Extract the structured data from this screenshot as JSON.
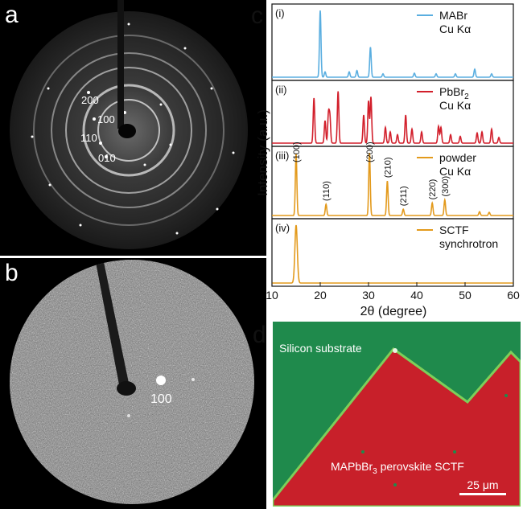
{
  "panels": {
    "a": {
      "letter": "a",
      "spot_labels": [
        "200",
        "100",
        "110",
        "010"
      ]
    },
    "b": {
      "letter": "b",
      "spot_label": "100"
    },
    "c": {
      "letter": "c",
      "ylabel": "Intensity (a.u.)",
      "xlabel": "2θ (degree)",
      "x_ticks": [
        "10",
        "20",
        "30",
        "40",
        "50",
        "60"
      ]
    },
    "d": {
      "letter": "d",
      "substrate_label": "Silicon substrate",
      "film_label_main": "MAPbBr",
      "film_label_sub": "3",
      "film_label_rest": " perovskite SCTF",
      "scale_bar_label": "25 μm"
    }
  },
  "colors": {
    "mabr": "#5aaee0",
    "pbbr2": "#d21f2b",
    "powder": "#e39a1c",
    "sctf": "#e39a1c",
    "substrate": "#1f8a4c",
    "film": "#c8202a"
  },
  "chart_data": [
    {
      "type": "line",
      "panel": "(i)",
      "legend": [
        "MABr",
        "Cu Kα"
      ],
      "xlim": [
        10,
        60
      ],
      "peaks_x": [
        20.0,
        21.0,
        26.0,
        27.6,
        30.4,
        33.0,
        39.5,
        44.0,
        48.0,
        52.0,
        55.5
      ],
      "peaks_rel": [
        1.0,
        0.08,
        0.08,
        0.1,
        0.45,
        0.05,
        0.06,
        0.05,
        0.05,
        0.12,
        0.05
      ]
    },
    {
      "type": "line",
      "panel": "(ii)",
      "legend_main": "PbBr",
      "legend_sub": "2",
      "legend_line2": "Cu Kα",
      "xlim": [
        10,
        60
      ],
      "peaks_x": [
        18.7,
        21.0,
        21.7,
        22.0,
        23.7,
        29.0,
        30.0,
        30.5,
        33.5,
        34.5,
        36.0,
        37.7,
        39.0,
        41.0,
        44.5,
        45.0,
        47.0,
        49.0,
        52.5,
        53.5,
        55.5,
        57.0
      ],
      "peaks_rel": [
        0.8,
        0.4,
        0.5,
        0.45,
        0.92,
        0.5,
        0.75,
        0.82,
        0.28,
        0.2,
        0.15,
        0.5,
        0.25,
        0.2,
        0.3,
        0.28,
        0.15,
        0.12,
        0.18,
        0.2,
        0.25,
        0.1
      ]
    },
    {
      "type": "line",
      "panel": "(iii)",
      "legend": [
        "powder",
        "Cu Kα"
      ],
      "xlim": [
        10,
        60
      ],
      "peaks_x": [
        15.0,
        21.2,
        30.2,
        33.9,
        37.2,
        43.2,
        45.8,
        53.0,
        55.0
      ],
      "peaks_rel": [
        0.98,
        0.18,
        1.0,
        0.55,
        0.1,
        0.2,
        0.25,
        0.06,
        0.05
      ],
      "labels": [
        "(100)",
        "(110)",
        "(200)",
        "(210)",
        "(211)",
        "(220)",
        "(300)"
      ],
      "label_x": [
        15.0,
        21.2,
        30.2,
        33.9,
        37.2,
        43.2,
        45.8
      ]
    },
    {
      "type": "line",
      "panel": "(iv)",
      "legend": [
        "SCTF",
        "synchrotron"
      ],
      "xlim": [
        10,
        60
      ],
      "peaks_x": [
        15.0
      ],
      "peaks_rel": [
        1.0
      ]
    }
  ]
}
